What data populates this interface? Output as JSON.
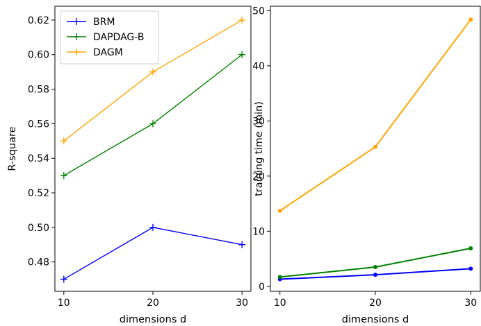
{
  "chart_data": [
    {
      "type": "line",
      "x": [
        10,
        20,
        30
      ],
      "xlabel": "dimensions d",
      "ylabel": "R-square",
      "xlim": [
        9.0,
        31.0
      ],
      "ylim": [
        0.463,
        0.628
      ],
      "xticks": [
        "10",
        "20",
        "30"
      ],
      "yticks": [
        "0.48",
        "0.50",
        "0.52",
        "0.54",
        "0.56",
        "0.58",
        "0.60",
        "0.62"
      ],
      "grid": false,
      "legend": "top-left",
      "marker": "plus",
      "series": [
        {
          "name": "BRM",
          "color": "#0000ff",
          "values": [
            0.47,
            0.5,
            0.49
          ]
        },
        {
          "name": "DAPDAG-B",
          "color": "#008000",
          "values": [
            0.53,
            0.56,
            0.6
          ]
        },
        {
          "name": "DAGM",
          "color": "#ffa500",
          "values": [
            0.55,
            0.59,
            0.62
          ]
        }
      ]
    },
    {
      "type": "line",
      "x": [
        10,
        20,
        30
      ],
      "xlabel": "dimensions d",
      "ylabel": "training time (min)",
      "xlim": [
        9.0,
        31.0
      ],
      "ylim": [
        -0.9,
        50.8
      ],
      "xticks": [
        "10",
        "20",
        "30"
      ],
      "yticks": [
        "0",
        "10",
        "20",
        "30",
        "40",
        "50"
      ],
      "grid": false,
      "marker": "dot",
      "series": [
        {
          "color": "#0000ff",
          "values": [
            1.3,
            2.1,
            3.2
          ]
        },
        {
          "color": "#008000",
          "values": [
            1.7,
            3.5,
            6.9
          ]
        },
        {
          "color": "#ffa500",
          "values": [
            13.7,
            25.3,
            48.4
          ]
        }
      ]
    }
  ]
}
